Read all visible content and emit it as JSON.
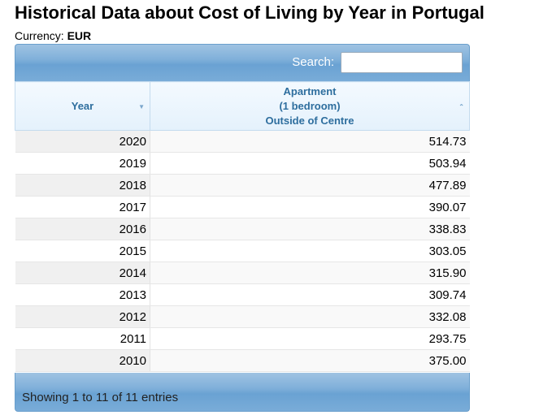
{
  "page": {
    "title": "Historical Data about Cost of Living by Year in Portugal",
    "currency_label": "Currency:",
    "currency_value": "EUR"
  },
  "search": {
    "label": "Search:",
    "value": "",
    "placeholder": ""
  },
  "table": {
    "columns": [
      {
        "label": "Year",
        "sort_icon": "sort-desc-icon"
      },
      {
        "label": "Apartment\n(1 bedroom)\nOutside of Centre",
        "sort_icon": "sort-asc-icon"
      }
    ],
    "rows": [
      {
        "year": "2020",
        "value": "514.73"
      },
      {
        "year": "2019",
        "value": "503.94"
      },
      {
        "year": "2018",
        "value": "477.89"
      },
      {
        "year": "2017",
        "value": "390.07"
      },
      {
        "year": "2016",
        "value": "338.83"
      },
      {
        "year": "2015",
        "value": "303.05"
      },
      {
        "year": "2014",
        "value": "315.90"
      },
      {
        "year": "2013",
        "value": "309.74"
      },
      {
        "year": "2012",
        "value": "332.08"
      },
      {
        "year": "2011",
        "value": "293.75"
      },
      {
        "year": "2010",
        "value": "375.00"
      }
    ]
  },
  "footer": {
    "info": "Showing 1 to 11 of 11 entries"
  },
  "colors": {
    "toolbar": "#79acd8",
    "header_text": "#2e6e9e"
  }
}
